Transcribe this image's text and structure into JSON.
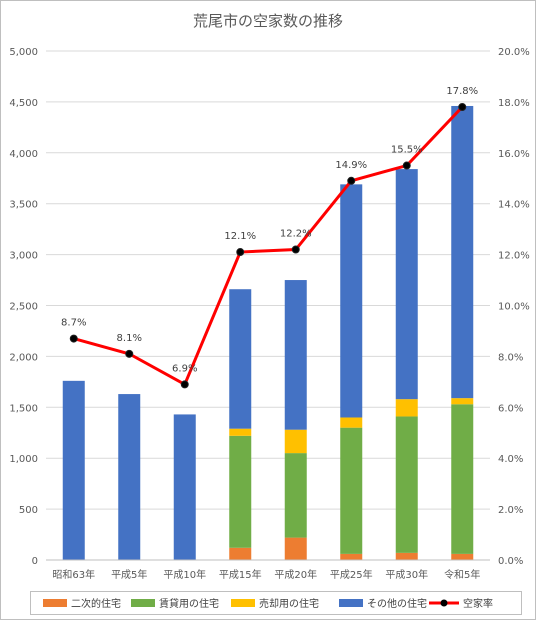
{
  "chart_data": {
    "type": "bar",
    "title": "荒尾市の空家数の推移",
    "categories": [
      "昭和63年",
      "平成5年",
      "平成10年",
      "平成15年",
      "平成20年",
      "平成25年",
      "平成30年",
      "令和5年"
    ],
    "left_axis": {
      "ylim": [
        0,
        5000
      ],
      "tick_labels": [
        "0",
        "500",
        "1,000",
        "1,500",
        "2,000",
        "2,500",
        "3,000",
        "3,500",
        "4,000",
        "4,500",
        "5,000"
      ]
    },
    "right_axis": {
      "ylim": [
        0,
        20
      ],
      "tick_labels": [
        "0.0%",
        "2.0%",
        "4.0%",
        "6.0%",
        "8.0%",
        "10.0%",
        "12.0%",
        "14.0%",
        "16.0%",
        "18.0%",
        "20.0%"
      ]
    },
    "bar_series": [
      {
        "name": "二次的住宅",
        "color": "#ed7d31",
        "values": [
          0,
          0,
          0,
          120,
          220,
          60,
          70,
          60
        ]
      },
      {
        "name": "賃貸用の住宅",
        "color": "#70ad47",
        "values": [
          0,
          0,
          0,
          1100,
          830,
          1240,
          1340,
          1470
        ]
      },
      {
        "name": "売却用の住宅",
        "color": "#ffc000",
        "values": [
          0,
          0,
          0,
          70,
          230,
          100,
          170,
          60
        ]
      },
      {
        "name": "その他の住宅",
        "color": "#4472c4",
        "values": [
          1760,
          1630,
          1430,
          1370,
          1470,
          2290,
          2260,
          2870
        ]
      }
    ],
    "line_series": {
      "name": "空家率",
      "color": "#ff0000",
      "values": [
        8.7,
        8.1,
        6.9,
        12.1,
        12.2,
        14.9,
        15.5,
        17.8
      ],
      "labels": [
        "8.7%",
        "8.1%",
        "6.9%",
        "12.1%",
        "12.2%",
        "14.9%",
        "15.5%",
        "17.8%"
      ]
    },
    "grid": true,
    "legend_position": "bottom"
  }
}
